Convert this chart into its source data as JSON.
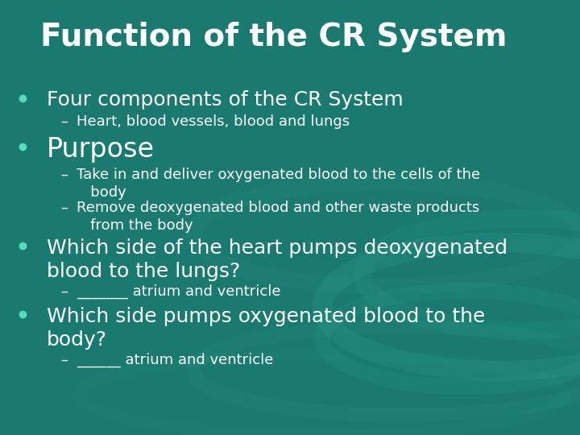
{
  "title": "Function of the CR System",
  "bg_color": "#1a7a70",
  "title_color": "#ffffff",
  "title_fontsize": 28,
  "bullet_color": "#ffffff",
  "bullet_dot_color": "#55ddbb",
  "sub_color": "#ffffff",
  "bullet_fontsize": 18,
  "purpose_fontsize": 24,
  "sub_fontsize": 13,
  "content": [
    {
      "type": "bullet",
      "text": "Four components of the CR System",
      "fontsize": 18,
      "subs": [
        {
          "text": "Heart, blood vessels, blood and lungs",
          "lines": 1
        }
      ]
    },
    {
      "type": "bullet",
      "text": "Purpose",
      "fontsize": 24,
      "subs": [
        {
          "text": "Take in and deliver oxygenated blood to the cells of the\n   body",
          "lines": 2
        },
        {
          "text": "Remove deoxygenated blood and other waste products\n   from the body",
          "lines": 2
        }
      ]
    },
    {
      "type": "bullet",
      "text": "Which side of the heart pumps deoxygenated\nblood to the lungs?",
      "fontsize": 18,
      "subs": [
        {
          "text": "_______ atrium and ventricle",
          "lines": 1
        }
      ]
    },
    {
      "type": "bullet",
      "text": "Which side pumps oxygenated blood to the\nbody?",
      "fontsize": 18,
      "subs": [
        {
          "text": "______ atrium and ventricle",
          "lines": 1
        }
      ]
    }
  ]
}
